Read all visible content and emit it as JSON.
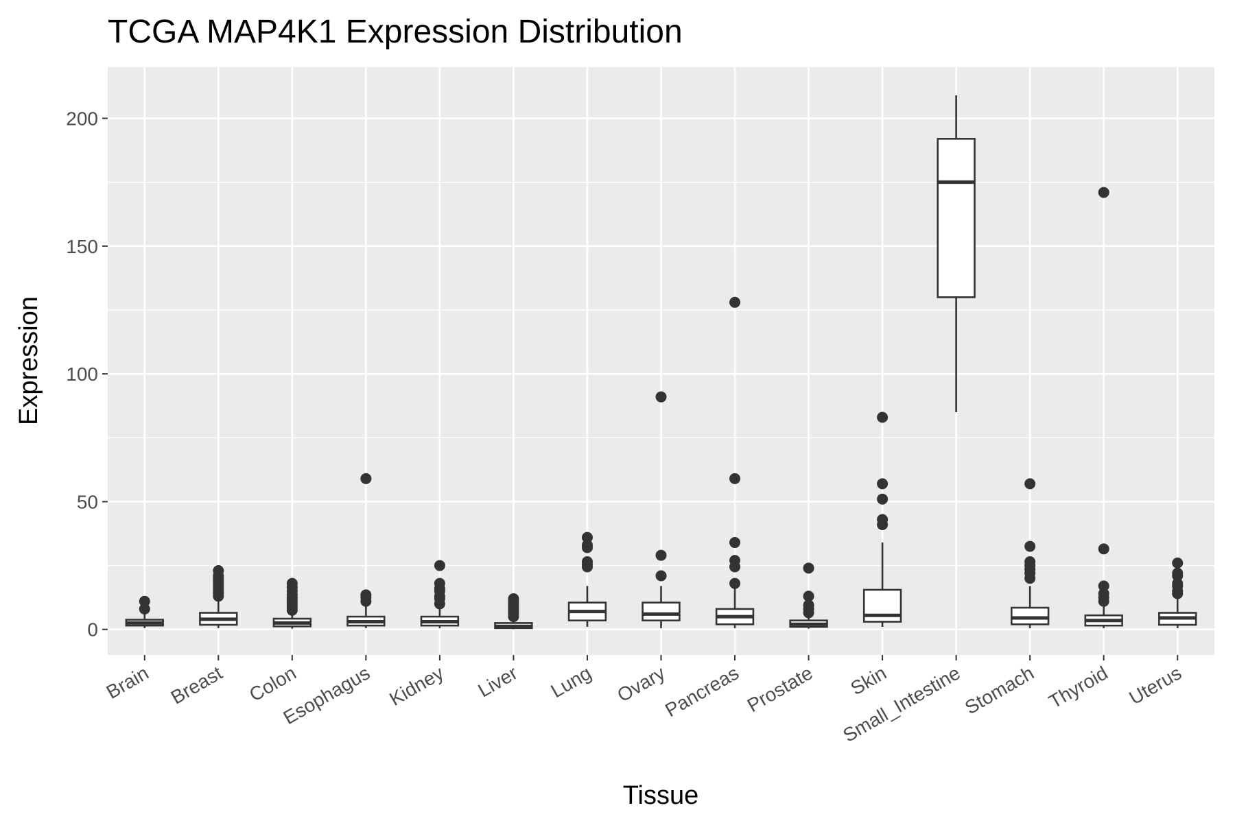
{
  "chart_data": {
    "type": "box",
    "title": "TCGA MAP4K1 Expression Distribution",
    "xlabel": "Tissue",
    "ylabel": "Expression",
    "ylim": [
      -10,
      220
    ],
    "yticks": [
      0,
      50,
      100,
      150,
      200
    ],
    "grid": true,
    "legend": "none",
    "categories": [
      "Brain",
      "Breast",
      "Colon",
      "Esophagus",
      "Kidney",
      "Liver",
      "Lung",
      "Ovary",
      "Pancreas",
      "Prostate",
      "Skin",
      "Small_Intestine",
      "Stomach",
      "Thyroid",
      "Uterus"
    ],
    "boxes": [
      {
        "category": "Brain",
        "whisker_low": 0.5,
        "q1": 1.5,
        "median": 2.5,
        "q3": 3.8,
        "whisker_high": 6.5,
        "outliers": [
          8,
          11
        ]
      },
      {
        "category": "Breast",
        "whisker_low": 0.5,
        "q1": 1.8,
        "median": 4.0,
        "q3": 6.5,
        "whisker_high": 11,
        "outliers": [
          13,
          14,
          15,
          16,
          17,
          18,
          19,
          20,
          21,
          23
        ]
      },
      {
        "category": "Colon",
        "whisker_low": 0.3,
        "q1": 1.2,
        "median": 2.5,
        "q3": 4.2,
        "whisker_high": 6.5,
        "outliers": [
          7.5,
          8.5,
          9.5,
          10.5,
          11.5,
          12.5,
          13.5,
          15,
          16.5,
          18
        ]
      },
      {
        "category": "Esophagus",
        "whisker_low": 0.5,
        "q1": 1.5,
        "median": 3.0,
        "q3": 5.0,
        "whisker_high": 9,
        "outliers": [
          11,
          12.5,
          13.5,
          59
        ]
      },
      {
        "category": "Kidney",
        "whisker_low": 0.5,
        "q1": 1.5,
        "median": 3.0,
        "q3": 5.0,
        "whisker_high": 8,
        "outliers": [
          10,
          12,
          13,
          15,
          16,
          18,
          25
        ]
      },
      {
        "category": "Liver",
        "whisker_low": 0.1,
        "q1": 0.5,
        "median": 1.2,
        "q3": 2.5,
        "whisker_high": 4,
        "outliers": [
          5,
          6,
          7,
          8,
          9,
          10,
          11,
          12
        ]
      },
      {
        "category": "Lung",
        "whisker_low": 1,
        "q1": 3.5,
        "median": 7,
        "q3": 10.5,
        "whisker_high": 17,
        "outliers": [
          24.5,
          25.5,
          26.5,
          32,
          33,
          36
        ]
      },
      {
        "category": "Ovary",
        "whisker_low": 0.5,
        "q1": 3.5,
        "median": 6,
        "q3": 10.5,
        "whisker_high": 17,
        "outliers": [
          21,
          29,
          91
        ]
      },
      {
        "category": "Pancreas",
        "whisker_low": 0.5,
        "q1": 2,
        "median": 5,
        "q3": 8,
        "whisker_high": 16,
        "outliers": [
          18,
          24.5,
          27,
          34,
          59,
          128
        ]
      },
      {
        "category": "Prostate",
        "whisker_low": 0.3,
        "q1": 1,
        "median": 2,
        "q3": 3.5,
        "whisker_high": 5,
        "outliers": [
          6.5,
          8,
          9.5,
          13,
          24
        ]
      },
      {
        "category": "Skin",
        "whisker_low": 1,
        "q1": 3,
        "median": 5.5,
        "q3": 15.5,
        "whisker_high": 34,
        "outliers": [
          41,
          43,
          51,
          57,
          83
        ]
      },
      {
        "category": "Small_Intestine",
        "whisker_low": 85,
        "q1": 130,
        "median": 175,
        "q3": 192,
        "whisker_high": 209,
        "outliers": []
      },
      {
        "category": "Stomach",
        "whisker_low": 0.5,
        "q1": 2,
        "median": 4.5,
        "q3": 8.5,
        "whisker_high": 17,
        "outliers": [
          20,
          22,
          23.5,
          25,
          26.5,
          32.5,
          57
        ]
      },
      {
        "category": "Thyroid",
        "whisker_low": 0.5,
        "q1": 1.5,
        "median": 3.5,
        "q3": 5.5,
        "whisker_high": 9,
        "outliers": [
          11,
          12.5,
          14,
          17,
          31.5,
          171
        ]
      },
      {
        "category": "Uterus",
        "whisker_low": 0.5,
        "q1": 1.8,
        "median": 4.5,
        "q3": 6.5,
        "whisker_high": 12,
        "outliers": [
          14,
          15,
          17,
          18,
          21,
          22,
          26
        ]
      }
    ]
  }
}
